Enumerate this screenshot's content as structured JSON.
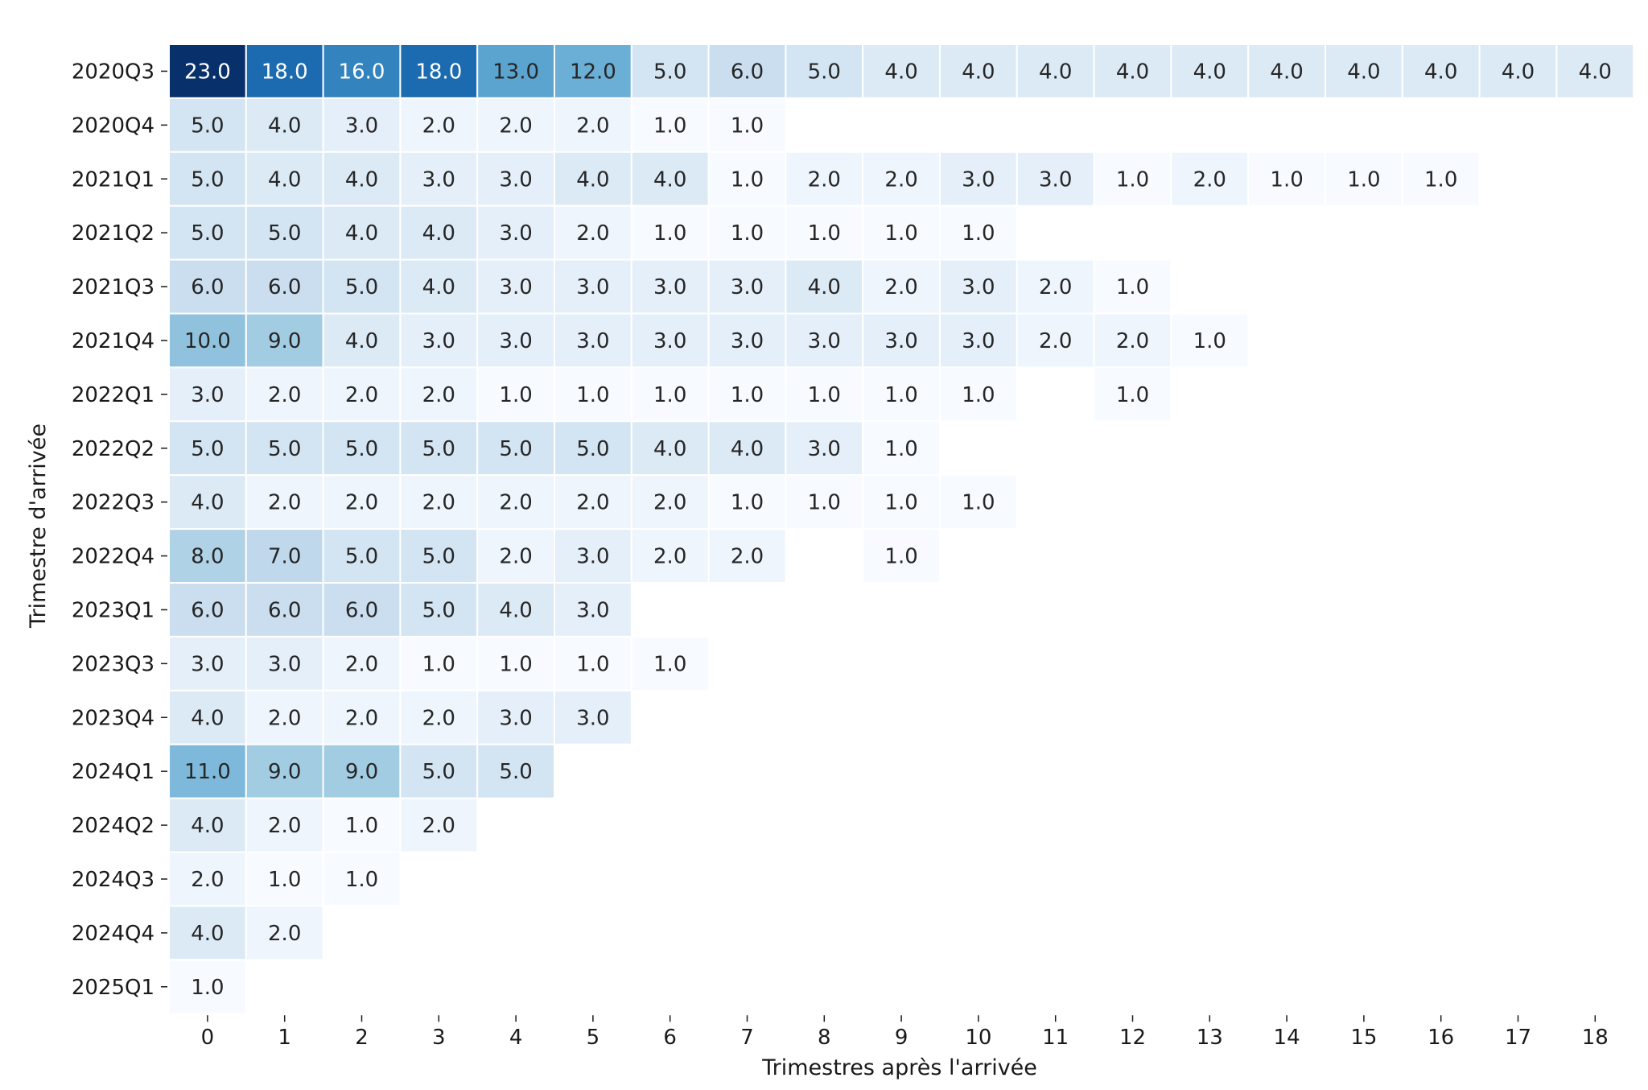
{
  "chart_data": {
    "type": "heatmap",
    "xlabel": "Trimestres après l'arrivée",
    "ylabel": "Trimestre d'arrivée",
    "x_categories": [
      "0",
      "1",
      "2",
      "3",
      "4",
      "5",
      "6",
      "7",
      "8",
      "9",
      "10",
      "11",
      "12",
      "13",
      "14",
      "15",
      "16",
      "17",
      "18"
    ],
    "y_categories": [
      "2020Q3",
      "2020Q4",
      "2021Q1",
      "2021Q2",
      "2021Q3",
      "2021Q4",
      "2022Q1",
      "2022Q2",
      "2022Q3",
      "2022Q4",
      "2023Q1",
      "2023Q3",
      "2023Q4",
      "2024Q1",
      "2024Q2",
      "2024Q3",
      "2024Q4",
      "2025Q1"
    ],
    "values": [
      [
        23.0,
        18.0,
        16.0,
        18.0,
        13.0,
        12.0,
        5.0,
        6.0,
        5.0,
        4.0,
        4.0,
        4.0,
        4.0,
        4.0,
        4.0,
        4.0,
        4.0,
        4.0,
        4.0
      ],
      [
        5.0,
        4.0,
        3.0,
        2.0,
        2.0,
        2.0,
        1.0,
        1.0,
        null,
        null,
        null,
        null,
        null,
        null,
        null,
        null,
        null,
        null,
        null
      ],
      [
        5.0,
        4.0,
        4.0,
        3.0,
        3.0,
        4.0,
        4.0,
        1.0,
        2.0,
        2.0,
        3.0,
        3.0,
        1.0,
        2.0,
        1.0,
        1.0,
        1.0,
        null,
        null
      ],
      [
        5.0,
        5.0,
        4.0,
        4.0,
        3.0,
        2.0,
        1.0,
        1.0,
        1.0,
        1.0,
        1.0,
        null,
        null,
        null,
        null,
        null,
        null,
        null,
        null
      ],
      [
        6.0,
        6.0,
        5.0,
        4.0,
        3.0,
        3.0,
        3.0,
        3.0,
        4.0,
        2.0,
        3.0,
        2.0,
        1.0,
        null,
        null,
        null,
        null,
        null,
        null
      ],
      [
        10.0,
        9.0,
        4.0,
        3.0,
        3.0,
        3.0,
        3.0,
        3.0,
        3.0,
        3.0,
        3.0,
        2.0,
        2.0,
        1.0,
        null,
        null,
        null,
        null,
        null
      ],
      [
        3.0,
        2.0,
        2.0,
        2.0,
        1.0,
        1.0,
        1.0,
        1.0,
        1.0,
        1.0,
        1.0,
        null,
        1.0,
        null,
        null,
        null,
        null,
        null,
        null
      ],
      [
        5.0,
        5.0,
        5.0,
        5.0,
        5.0,
        5.0,
        4.0,
        4.0,
        3.0,
        1.0,
        null,
        null,
        null,
        null,
        null,
        null,
        null,
        null,
        null
      ],
      [
        4.0,
        2.0,
        2.0,
        2.0,
        2.0,
        2.0,
        2.0,
        1.0,
        1.0,
        1.0,
        1.0,
        null,
        null,
        null,
        null,
        null,
        null,
        null,
        null
      ],
      [
        8.0,
        7.0,
        5.0,
        5.0,
        2.0,
        3.0,
        2.0,
        2.0,
        null,
        1.0,
        null,
        null,
        null,
        null,
        null,
        null,
        null,
        null,
        null
      ],
      [
        6.0,
        6.0,
        6.0,
        5.0,
        4.0,
        3.0,
        null,
        null,
        null,
        null,
        null,
        null,
        null,
        null,
        null,
        null,
        null,
        null,
        null
      ],
      [
        3.0,
        3.0,
        2.0,
        1.0,
        1.0,
        1.0,
        1.0,
        null,
        null,
        null,
        null,
        null,
        null,
        null,
        null,
        null,
        null,
        null,
        null
      ],
      [
        4.0,
        2.0,
        2.0,
        2.0,
        3.0,
        3.0,
        null,
        null,
        null,
        null,
        null,
        null,
        null,
        null,
        null,
        null,
        null,
        null,
        null
      ],
      [
        11.0,
        9.0,
        9.0,
        5.0,
        5.0,
        null,
        null,
        null,
        null,
        null,
        null,
        null,
        null,
        null,
        null,
        null,
        null,
        null,
        null
      ],
      [
        4.0,
        2.0,
        1.0,
        2.0,
        null,
        null,
        null,
        null,
        null,
        null,
        null,
        null,
        null,
        null,
        null,
        null,
        null,
        null,
        null
      ],
      [
        2.0,
        1.0,
        1.0,
        null,
        null,
        null,
        null,
        null,
        null,
        null,
        null,
        null,
        null,
        null,
        null,
        null,
        null,
        null,
        null
      ],
      [
        4.0,
        2.0,
        null,
        null,
        null,
        null,
        null,
        null,
        null,
        null,
        null,
        null,
        null,
        null,
        null,
        null,
        null,
        null,
        null
      ],
      [
        1.0,
        null,
        null,
        null,
        null,
        null,
        null,
        null,
        null,
        null,
        null,
        null,
        null,
        null,
        null,
        null,
        null,
        null,
        null
      ]
    ],
    "value_format": "1 decimal",
    "colormap": "Blues",
    "color_min": "#f7fbff",
    "color_max": "#08306b",
    "cell_border_color": "#ffffff",
    "grid": false,
    "legend": "none"
  }
}
